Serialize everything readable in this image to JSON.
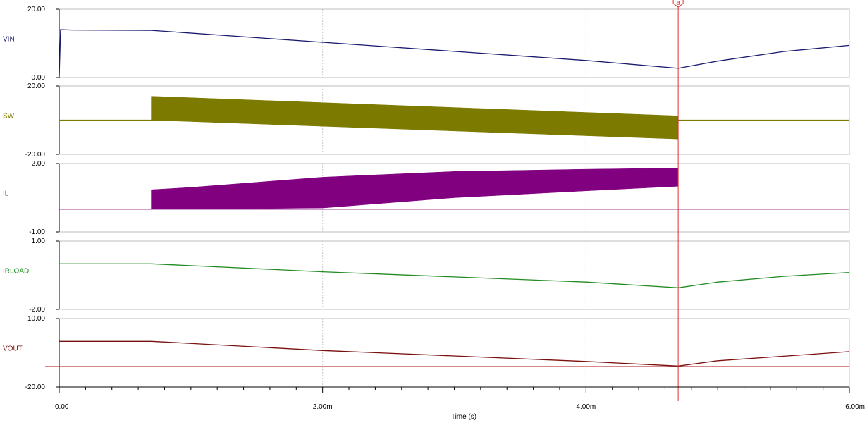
{
  "chart_data": {
    "type": "line",
    "xlabel": "Time (s)",
    "x_range": [
      0,
      0.006
    ],
    "x_tick_labels": [
      "0.00",
      "2.00m",
      "4.00m",
      "6.00m"
    ],
    "x_tick_values": [
      0,
      0.002,
      0.004,
      0.006
    ],
    "grid": "dashed vertical",
    "cursor": {
      "label": "a",
      "x": 0.0047,
      "color": "#e03030"
    },
    "panels": [
      {
        "name": "VIN",
        "color": "#1a1a6e",
        "ylim": [
          0,
          20
        ],
        "ytick_labels": [
          "0.00",
          "20.00"
        ],
        "series": [
          {
            "x": 0,
            "y": 0
          },
          {
            "x": 1e-05,
            "y": 14
          },
          {
            "x": 0.0001,
            "y": 13.9
          },
          {
            "x": 0.0007,
            "y": 13.8
          },
          {
            "x": 0.002,
            "y": 10.3
          },
          {
            "x": 0.004,
            "y": 5.0
          },
          {
            "x": 0.0047,
            "y": 2.7
          },
          {
            "x": 0.005,
            "y": 4.8
          },
          {
            "x": 0.0055,
            "y": 7.6
          },
          {
            "x": 0.006,
            "y": 9.4
          }
        ]
      },
      {
        "name": "SW",
        "color": "#7d7a00",
        "ylim": [
          -20,
          20
        ],
        "ytick_labels": [
          "-20.00",
          "20.00"
        ],
        "series": [
          {
            "x": 0,
            "y": 0
          },
          {
            "x": 0.0047,
            "y": 0
          },
          {
            "x": 0.006,
            "y": 0
          }
        ],
        "envelope": {
          "x": [
            0.0007,
            0.0047
          ],
          "high": [
            14,
            2.5
          ],
          "low": [
            0,
            -11
          ]
        }
      },
      {
        "name": "IL",
        "color": "#800080",
        "ylim": [
          -1,
          2
        ],
        "ytick_labels": [
          "-1.00",
          "2.00"
        ],
        "series": [
          {
            "x": 0,
            "y": 0
          },
          {
            "x": 0.0007,
            "y": 0
          },
          {
            "x": 0.0047,
            "y": 0
          },
          {
            "x": 0.006,
            "y": 0
          }
        ],
        "envelope": {
          "x": [
            0.0007,
            0.001,
            0.002,
            0.003,
            0.004,
            0.0047
          ],
          "high": [
            0.85,
            0.95,
            1.4,
            1.65,
            1.75,
            1.8
          ],
          "low": [
            0,
            0,
            0.05,
            0.5,
            0.8,
            1.0
          ]
        }
      },
      {
        "name": "IRLOAD",
        "color": "#228b22",
        "ylim": [
          -2,
          1
        ],
        "ytick_labels": [
          "-2.00",
          "1.00"
        ],
        "series": [
          {
            "x": 0,
            "y": 0
          },
          {
            "x": 0.0007,
            "y": 0
          },
          {
            "x": 0.002,
            "y": -0.35
          },
          {
            "x": 0.004,
            "y": -0.8
          },
          {
            "x": 0.0047,
            "y": -1.05
          },
          {
            "x": 0.005,
            "y": -0.8
          },
          {
            "x": 0.0055,
            "y": -0.55
          },
          {
            "x": 0.006,
            "y": -0.38
          }
        ]
      },
      {
        "name": "VOUT",
        "color": "#7a1010",
        "ylim": [
          -20,
          10
        ],
        "ytick_labels": [
          "-20.00",
          "10.00"
        ],
        "reference_level": -11,
        "series": [
          {
            "x": 0,
            "y": 0
          },
          {
            "x": 0.0007,
            "y": 0
          },
          {
            "x": 0.002,
            "y": -4
          },
          {
            "x": 0.004,
            "y": -8.8
          },
          {
            "x": 0.0047,
            "y": -10.8
          },
          {
            "x": 0.005,
            "y": -8.5
          },
          {
            "x": 0.0055,
            "y": -6.5
          },
          {
            "x": 0.006,
            "y": -4.5
          }
        ]
      }
    ]
  }
}
